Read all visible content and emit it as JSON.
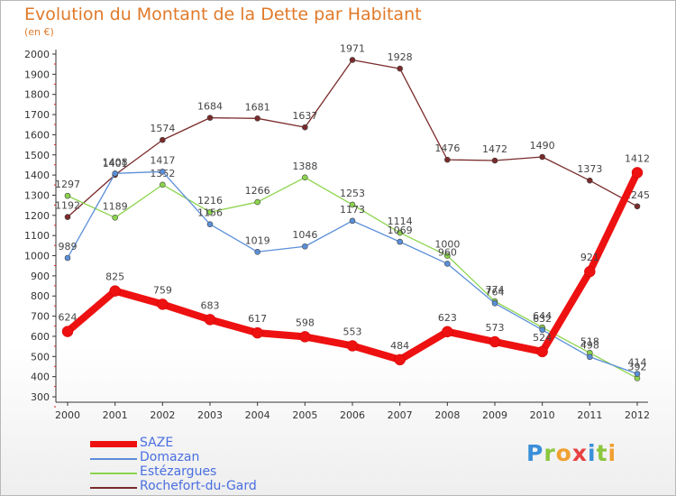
{
  "chart_data": {
    "type": "line",
    "title": "Evolution du Montant de la Dette par Habitant",
    "subtitle": "(en €)",
    "x": [
      "2000",
      "2001",
      "2002",
      "2003",
      "2004",
      "2005",
      "2006",
      "2007",
      "2008",
      "2009",
      "2010",
      "2011",
      "2012"
    ],
    "ylim": [
      300,
      2000
    ],
    "yticks": [
      300,
      400,
      500,
      600,
      700,
      800,
      900,
      1000,
      1100,
      1200,
      1300,
      1400,
      1500,
      1600,
      1700,
      1800,
      1900,
      2000
    ],
    "grid": false,
    "legend_position": "bottom-left",
    "series": [
      {
        "name": "SAZE",
        "color": "#ee1111",
        "values": [
          624,
          825,
          759,
          683,
          617,
          598,
          553,
          484,
          623,
          573,
          524,
          921,
          1412
        ],
        "labels": [
          "624",
          "825",
          "759",
          "683",
          "617",
          "598",
          "553",
          "484",
          "623",
          "573",
          "524",
          "921",
          "1412"
        ]
      },
      {
        "name": "Domazan",
        "color": "#5b8fd8",
        "values": [
          989,
          1408,
          1417,
          1156,
          1019,
          1046,
          1173,
          1069,
          960,
          764,
          632,
          498,
          414
        ],
        "labels": [
          "989",
          "1408",
          "1417",
          "1156",
          "1019",
          "1046",
          "1173",
          "1069",
          "960",
          "764",
          "632",
          "498",
          "414"
        ]
      },
      {
        "name": "Estézargues",
        "color": "#8cd44c",
        "values": [
          1297,
          1189,
          1352,
          1216,
          1266,
          1388,
          1253,
          1114,
          1000,
          774,
          644,
          518,
          392
        ],
        "labels": [
          "1297",
          "1189",
          "1352",
          "1216",
          "1266",
          "1388",
          "1253",
          "1114",
          "1000",
          "774",
          "644",
          "518",
          "392"
        ]
      },
      {
        "name": "Rochefort-du-Gard",
        "color": "#7a2a2a",
        "values": [
          1192,
          1401,
          1574,
          1684,
          1681,
          1637,
          1971,
          1928,
          1476,
          1472,
          1490,
          1373,
          1245
        ],
        "labels": [
          "1192",
          "1401",
          "1574",
          "1684",
          "1681",
          "1637",
          "1971",
          "1928",
          "1476",
          "1472",
          "1490",
          "1373",
          "1245"
        ]
      }
    ]
  },
  "logo": {
    "letters": [
      "P",
      "r",
      "o",
      "x",
      "i",
      "t",
      "i"
    ],
    "colors": [
      "#3a8fd8",
      "#8cc63e",
      "#f0a030",
      "#e84040",
      "#3a8fd8",
      "#8cc63e",
      "#f0a030"
    ]
  }
}
